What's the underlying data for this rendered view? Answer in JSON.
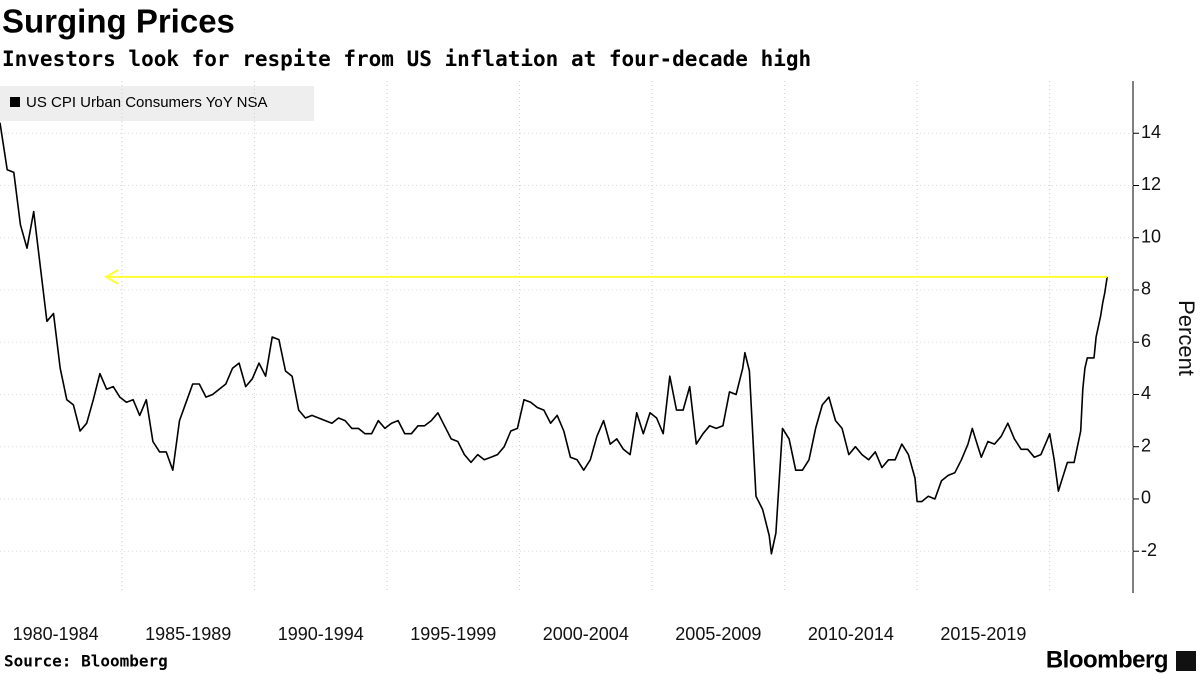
{
  "chart_data": {
    "type": "line",
    "title": "Surging Prices",
    "subtitle": "Investors look for respite from US inflation at four-decade high",
    "source": "Source: Bloomberg",
    "brand": "Bloomberg",
    "y_label": "Percent",
    "categories": [
      "1980-1984",
      "1985-1989",
      "1990-1994",
      "1995-1999",
      "2000-2004",
      "2005-2009",
      "2010-2014",
      "2015-2019"
    ],
    "x": [
      1980.4,
      1980.67,
      1980.92,
      1981.17,
      1981.42,
      1981.67,
      1981.92,
      1982.17,
      1982.42,
      1982.67,
      1982.92,
      1983.17,
      1983.42,
      1983.67,
      1983.92,
      1984.17,
      1984.42,
      1984.67,
      1984.92,
      1985.17,
      1985.42,
      1985.67,
      1985.92,
      1986.17,
      1986.42,
      1986.67,
      1986.92,
      1987.17,
      1987.42,
      1987.67,
      1987.92,
      1988.17,
      1988.42,
      1988.67,
      1988.92,
      1989.17,
      1989.42,
      1989.67,
      1989.92,
      1990.17,
      1990.42,
      1990.67,
      1990.92,
      1991.17,
      1991.42,
      1991.67,
      1991.92,
      1992.17,
      1992.42,
      1992.67,
      1992.92,
      1993.17,
      1993.42,
      1993.67,
      1993.92,
      1994.17,
      1994.42,
      1994.67,
      1994.92,
      1995.17,
      1995.42,
      1995.67,
      1995.92,
      1996.17,
      1996.42,
      1996.67,
      1996.92,
      1997.17,
      1997.42,
      1997.67,
      1997.92,
      1998.17,
      1998.42,
      1998.67,
      1998.92,
      1999.17,
      1999.42,
      1999.67,
      1999.92,
      2000.17,
      2000.42,
      2000.67,
      2000.92,
      2001.17,
      2001.42,
      2001.67,
      2001.92,
      2002.17,
      2002.42,
      2002.67,
      2002.92,
      2003.17,
      2003.42,
      2003.67,
      2003.92,
      2004.17,
      2004.42,
      2004.67,
      2004.92,
      2005.17,
      2005.42,
      2005.67,
      2005.92,
      2006.17,
      2006.42,
      2006.67,
      2006.92,
      2007.17,
      2007.42,
      2007.67,
      2007.92,
      2008.17,
      2008.42,
      2008.5,
      2008.67,
      2008.92,
      2009.17,
      2009.42,
      2009.5,
      2009.67,
      2009.92,
      2010.17,
      2010.42,
      2010.67,
      2010.92,
      2011.17,
      2011.42,
      2011.67,
      2011.92,
      2012.17,
      2012.42,
      2012.67,
      2012.92,
      2013.17,
      2013.42,
      2013.67,
      2013.92,
      2014.17,
      2014.42,
      2014.67,
      2014.92,
      2015.0,
      2015.17,
      2015.42,
      2015.67,
      2015.92,
      2016.17,
      2016.42,
      2016.67,
      2016.92,
      2017.08,
      2017.17,
      2017.42,
      2017.67,
      2017.92,
      2018.17,
      2018.42,
      2018.67,
      2018.92,
      2019.17,
      2019.42,
      2019.67,
      2019.92,
      2020.0,
      2020.17,
      2020.33,
      2020.42,
      2020.67,
      2020.92,
      2021.17,
      2021.25,
      2021.33,
      2021.42,
      2021.67,
      2021.75,
      2021.92,
      2022.0,
      2022.08,
      2022.17
    ],
    "series": [
      {
        "name": "US CPI Urban Consumers YoY NSA",
        "color": "#000000",
        "values": [
          14.4,
          12.6,
          12.5,
          10.5,
          9.6,
          11.0,
          8.9,
          6.8,
          7.1,
          5.0,
          3.8,
          3.6,
          2.6,
          2.9,
          3.8,
          4.8,
          4.2,
          4.3,
          3.9,
          3.7,
          3.8,
          3.2,
          3.8,
          2.2,
          1.8,
          1.8,
          1.1,
          3.0,
          3.7,
          4.4,
          4.4,
          3.9,
          4.0,
          4.2,
          4.4,
          5.0,
          5.2,
          4.3,
          4.6,
          5.2,
          4.7,
          6.2,
          6.1,
          4.9,
          4.7,
          3.4,
          3.1,
          3.2,
          3.1,
          3.0,
          2.9,
          3.1,
          3.0,
          2.7,
          2.7,
          2.5,
          2.5,
          3.0,
          2.7,
          2.9,
          3.0,
          2.5,
          2.5,
          2.8,
          2.8,
          3.0,
          3.3,
          2.8,
          2.3,
          2.2,
          1.7,
          1.4,
          1.7,
          1.5,
          1.6,
          1.7,
          2.0,
          2.6,
          2.7,
          3.8,
          3.7,
          3.5,
          3.4,
          2.9,
          3.2,
          2.6,
          1.6,
          1.5,
          1.1,
          1.5,
          2.4,
          3.0,
          2.1,
          2.3,
          1.9,
          1.7,
          3.3,
          2.5,
          3.3,
          3.1,
          2.5,
          4.7,
          3.4,
          3.4,
          4.3,
          2.1,
          2.5,
          2.8,
          2.7,
          2.8,
          4.1,
          4.0,
          5.0,
          5.6,
          4.9,
          0.1,
          -0.4,
          -1.4,
          -2.1,
          -1.3,
          2.7,
          2.3,
          1.1,
          1.1,
          1.5,
          2.7,
          3.6,
          3.9,
          3.0,
          2.7,
          1.7,
          2.0,
          1.7,
          1.5,
          1.8,
          1.2,
          1.5,
          1.5,
          2.1,
          1.7,
          0.8,
          -0.1,
          -0.1,
          0.1,
          0.0,
          0.7,
          0.9,
          1.0,
          1.5,
          2.1,
          2.7,
          2.4,
          1.6,
          2.2,
          2.1,
          2.4,
          2.9,
          2.3,
          1.9,
          1.9,
          1.6,
          1.7,
          2.3,
          2.5,
          1.5,
          0.3,
          0.6,
          1.4,
          1.4,
          2.6,
          4.2,
          5.0,
          5.4,
          5.4,
          6.2,
          7.0,
          7.5,
          7.9,
          8.5
        ]
      }
    ],
    "arrow": {
      "value": 8.5,
      "x": [
        1984.4,
        2022.17
      ],
      "color": "#ffff33"
    },
    "xlim": [
      1980.4,
      2022.2
    ],
    "xticks": [
      1985,
      1990,
      1995,
      2000,
      2005,
      2010,
      2015,
      2020
    ],
    "ylim": [
      -3.6,
      16
    ],
    "yticks": [
      -2,
      0,
      2,
      4,
      6,
      8,
      10,
      12,
      14
    ],
    "grid": true,
    "legend": "top-left"
  }
}
